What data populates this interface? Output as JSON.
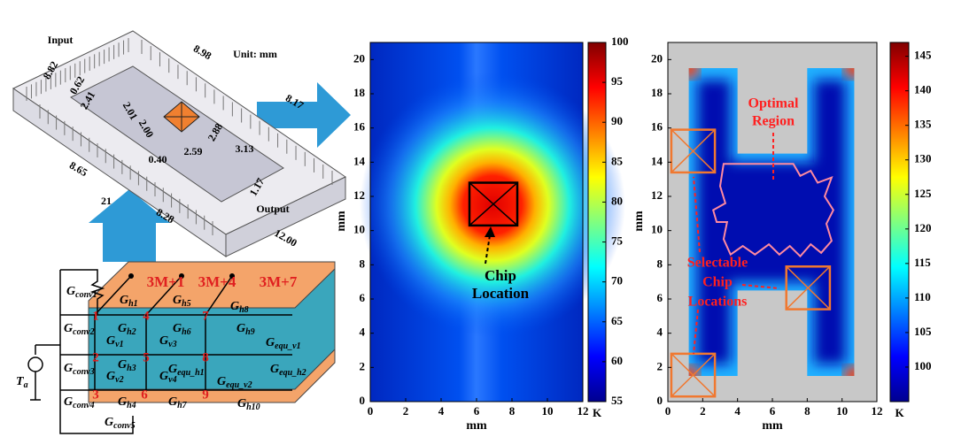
{
  "diagram": {
    "unit": "Unit: mm",
    "input": "Input",
    "output": "Output",
    "dimensions": [
      "8.82",
      "0.62",
      "2.41",
      "2.01",
      "2.00",
      "0.40",
      "2.59",
      "2.88",
      "3.13",
      "1.17",
      "8.98",
      "8.17",
      "8.65",
      "21",
      "8.28",
      "12.00"
    ],
    "circuit": {
      "conductances": [
        {
          "base": "G",
          "sub": "conv1"
        },
        {
          "base": "G",
          "sub": "h1"
        },
        {
          "base": "G",
          "sub": "h5"
        },
        {
          "base": "G",
          "sub": "h8"
        },
        {
          "base": "G",
          "sub": "conv2"
        },
        {
          "base": "G",
          "sub": "h2"
        },
        {
          "base": "G",
          "sub": "h6"
        },
        {
          "base": "G",
          "sub": "h9"
        },
        {
          "base": "G",
          "sub": "v1"
        },
        {
          "base": "G",
          "sub": "v3"
        },
        {
          "base": "G",
          "sub": "equ_v1"
        },
        {
          "base": "G",
          "sub": "conv3"
        },
        {
          "base": "G",
          "sub": "h3"
        },
        {
          "base": "G",
          "sub": "equ_h1"
        },
        {
          "base": "G",
          "sub": "equ_h2"
        },
        {
          "base": "G",
          "sub": "v2"
        },
        {
          "base": "G",
          "sub": "v4"
        },
        {
          "base": "G",
          "sub": "equ_v2"
        },
        {
          "base": "G",
          "sub": "conv4"
        },
        {
          "base": "G",
          "sub": "h4"
        },
        {
          "base": "G",
          "sub": "h7"
        },
        {
          "base": "G",
          "sub": "h10"
        },
        {
          "base": "G",
          "sub": "conv5"
        }
      ],
      "source": {
        "base": "T",
        "sub": "a"
      },
      "node_groups": [
        "3M+1",
        "3M+4",
        "3M+7"
      ],
      "nodes": [
        1,
        4,
        7,
        2,
        5,
        8,
        3,
        6,
        9
      ]
    }
  },
  "chart_data": [
    {
      "type": "heatmap",
      "xlabel": "mm",
      "ylabel": "mm",
      "xlim": [
        0,
        12
      ],
      "xticks": [
        0,
        2,
        4,
        6,
        8,
        10,
        12
      ],
      "ylim": [
        0,
        21
      ],
      "yticks": [
        0,
        2,
        4,
        6,
        8,
        10,
        12,
        14,
        16,
        18,
        20
      ],
      "clim": [
        55,
        100
      ],
      "cticks": [
        55,
        60,
        65,
        70,
        75,
        80,
        85,
        90,
        95,
        100
      ],
      "colorbar_label": "K",
      "colormap": "jet",
      "annotations": [
        [
          "Chip",
          "Location"
        ]
      ]
    },
    {
      "type": "heatmap",
      "xlabel": "mm",
      "ylabel": "mm",
      "xlim": [
        0,
        12
      ],
      "xticks": [
        0,
        2,
        4,
        6,
        8,
        10,
        12
      ],
      "ylim": [
        0,
        21
      ],
      "yticks": [
        0,
        2,
        4,
        6,
        8,
        10,
        12,
        14,
        16,
        18,
        20
      ],
      "clim": [
        95,
        147
      ],
      "cticks": [
        100,
        105,
        110,
        115,
        120,
        125,
        130,
        135,
        140,
        145
      ],
      "colorbar_label": "K",
      "colormap": "jet",
      "annotations": [
        [
          "Optimal",
          "Region"
        ],
        [
          "Selectable",
          "Chip",
          "Locations"
        ]
      ]
    }
  ]
}
